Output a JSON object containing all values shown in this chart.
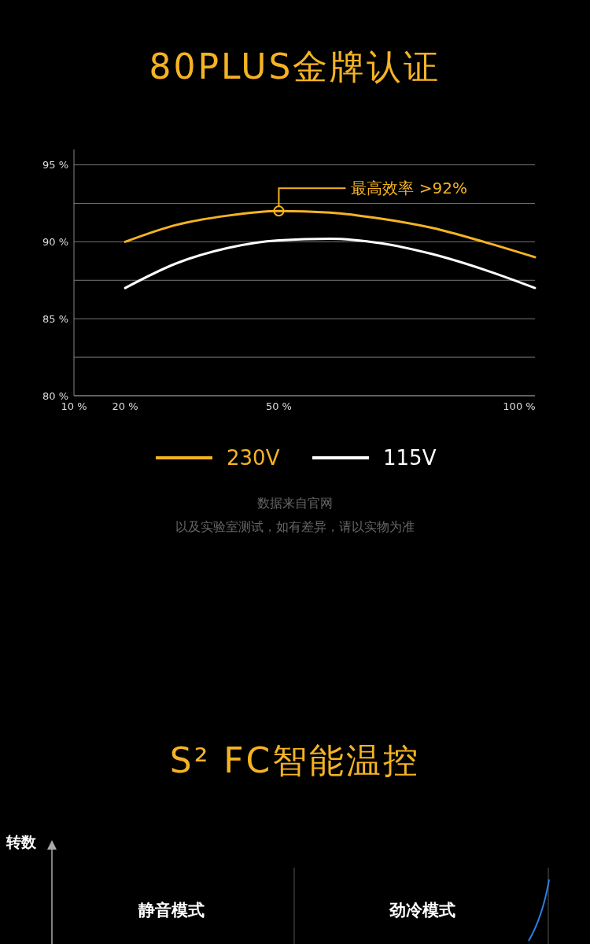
{
  "chart_data": [
    {
      "type": "line",
      "title": "80PLUS金牌认证",
      "x": [
        20,
        30,
        40,
        50,
        60,
        70,
        80,
        90,
        100
      ],
      "series": [
        {
          "name": "230V",
          "color": "#f5b323",
          "values": [
            90,
            91.1,
            91.7,
            92,
            91.9,
            91.5,
            90.9,
            90.0,
            89
          ]
        },
        {
          "name": "115V",
          "color": "#ffffff",
          "values": [
            87,
            88.6,
            89.6,
            90.1,
            90.2,
            89.9,
            89.2,
            88.2,
            87
          ]
        }
      ],
      "xlim": [
        10,
        100
      ],
      "xticks": [
        {
          "value": 10,
          "label": "10 %"
        },
        {
          "value": 20,
          "label": "20 %"
        },
        {
          "value": 50,
          "label": "50 %"
        },
        {
          "value": 100,
          "label": "100 %"
        }
      ],
      "ylim": [
        80,
        96
      ],
      "yticks": [
        {
          "value": 80,
          "label": "80 %"
        },
        {
          "value": 82.5,
          "label": null
        },
        {
          "value": 85,
          "label": "85 %"
        },
        {
          "value": 87.5,
          "label": null
        },
        {
          "value": 90,
          "label": "90 %"
        },
        {
          "value": 92.5,
          "label": null
        },
        {
          "value": 95,
          "label": "95 %"
        }
      ],
      "grid": "y",
      "legend": "bottom",
      "marker": "none",
      "line_style": "solid",
      "annotations": [
        {
          "text": "最高效率 >92%",
          "x": 50,
          "y": 92
        },
        "数据来自官网",
        "以及实验室测试，如有差异，请以实物为准"
      ]
    },
    {
      "type": "other",
      "title": "S² FC智能温控",
      "ylabel": "转数",
      "annotations": [
        "静音模式",
        "劲冷模式"
      ]
    }
  ]
}
